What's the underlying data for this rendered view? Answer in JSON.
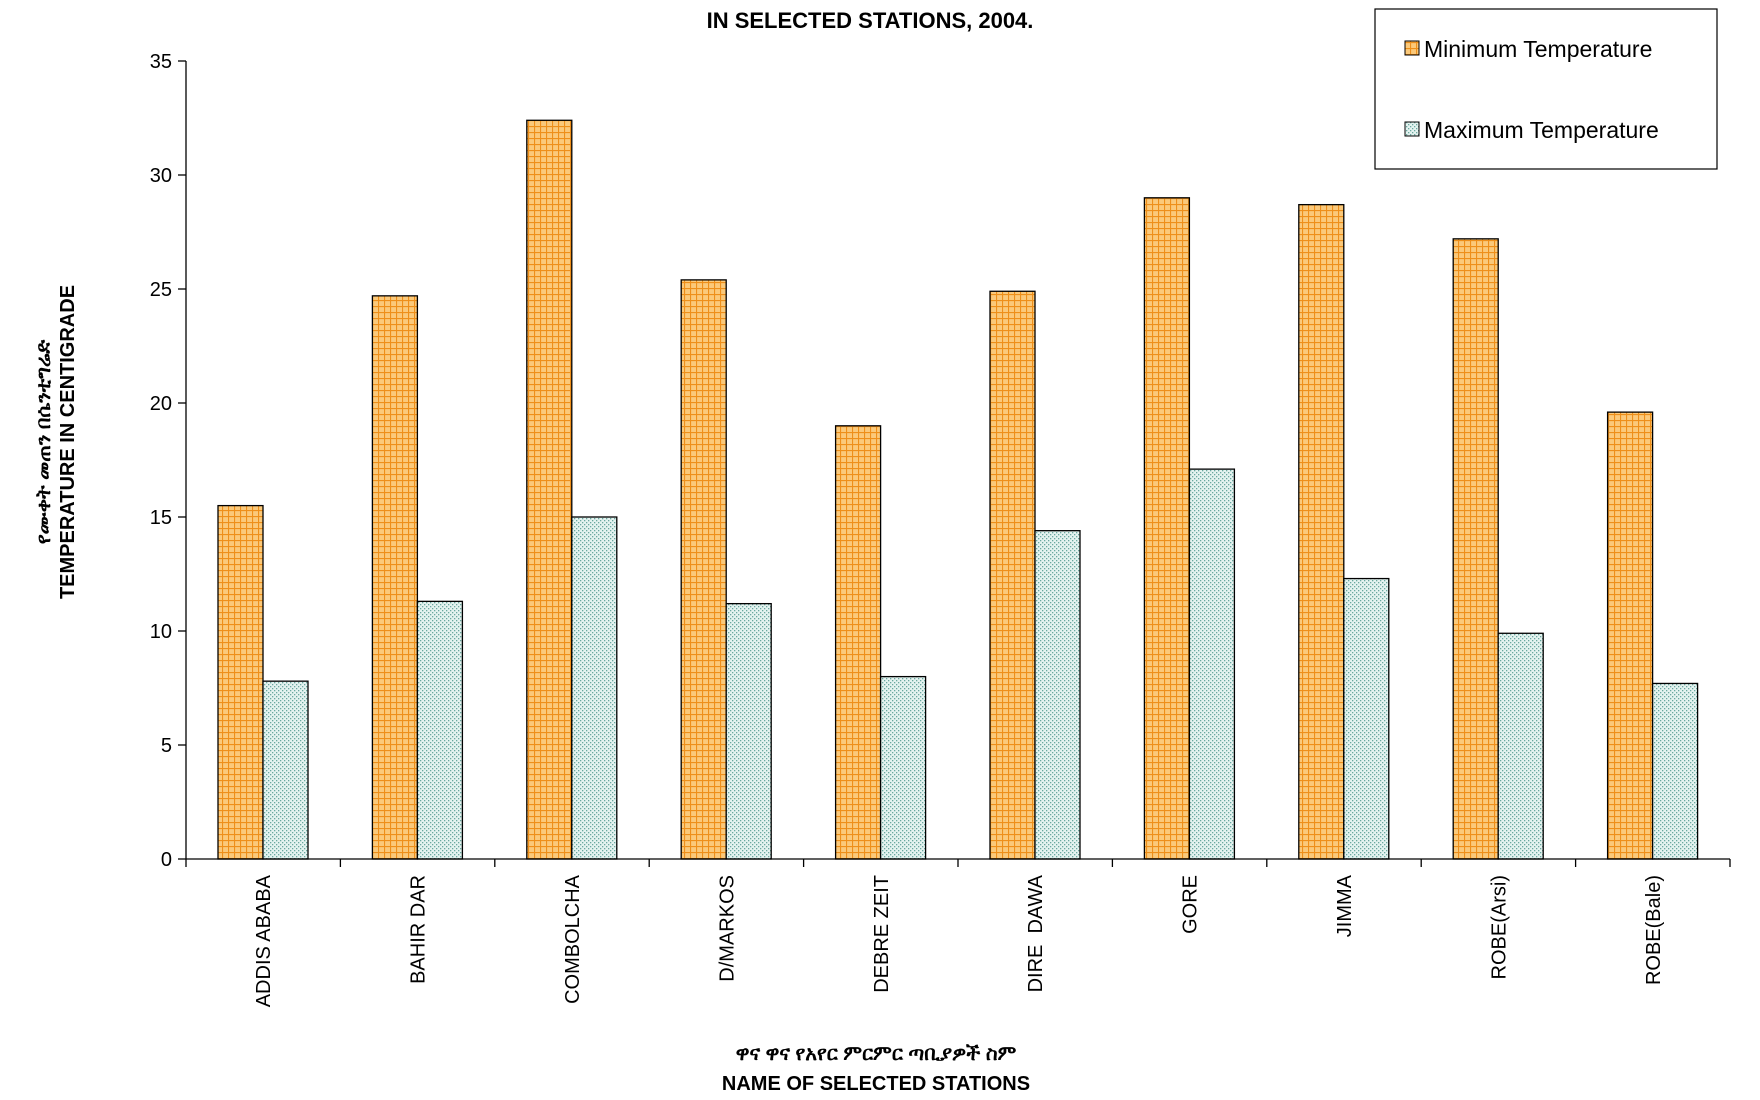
{
  "chart_data": {
    "type": "bar",
    "title": "IN SELECTED STATIONS, 2004.",
    "xlabel_amharic": "ዋና ዋና የአየር ምርምር ጣቢያዎች ስም",
    "xlabel": "NAME OF SELECTED STATIONS",
    "ylabel_amharic": "የሙቀት መጠን በሴንቲግሬድ",
    "ylabel": "TEMPERATURE IN CENTIGRADE",
    "ylim": [
      0,
      35
    ],
    "yticks": [
      0,
      5,
      10,
      15,
      20,
      25,
      30,
      35
    ],
    "categories": [
      "ADDIS ABABA",
      "BAHIR DAR",
      "COMBOLCHA",
      "D/MARKOS",
      "DEBRE ZEIT",
      "DIRE  DAWA",
      "GORE",
      "JIMMA",
      "ROBE(Arsi)",
      "ROBE(Bale)"
    ],
    "series": [
      {
        "name": "Minimum Temperature",
        "color": "#f7a83c",
        "values": [
          15.5,
          24.7,
          32.4,
          25.4,
          19.0,
          24.9,
          29.0,
          28.7,
          27.2,
          19.6
        ]
      },
      {
        "name": "Maximum Temperature",
        "color": "#9fd3cc",
        "values": [
          7.8,
          11.3,
          15.0,
          11.2,
          8.0,
          14.4,
          17.1,
          12.3,
          9.9,
          7.7
        ]
      }
    ],
    "legend_position": "top-right",
    "grid": false
  }
}
